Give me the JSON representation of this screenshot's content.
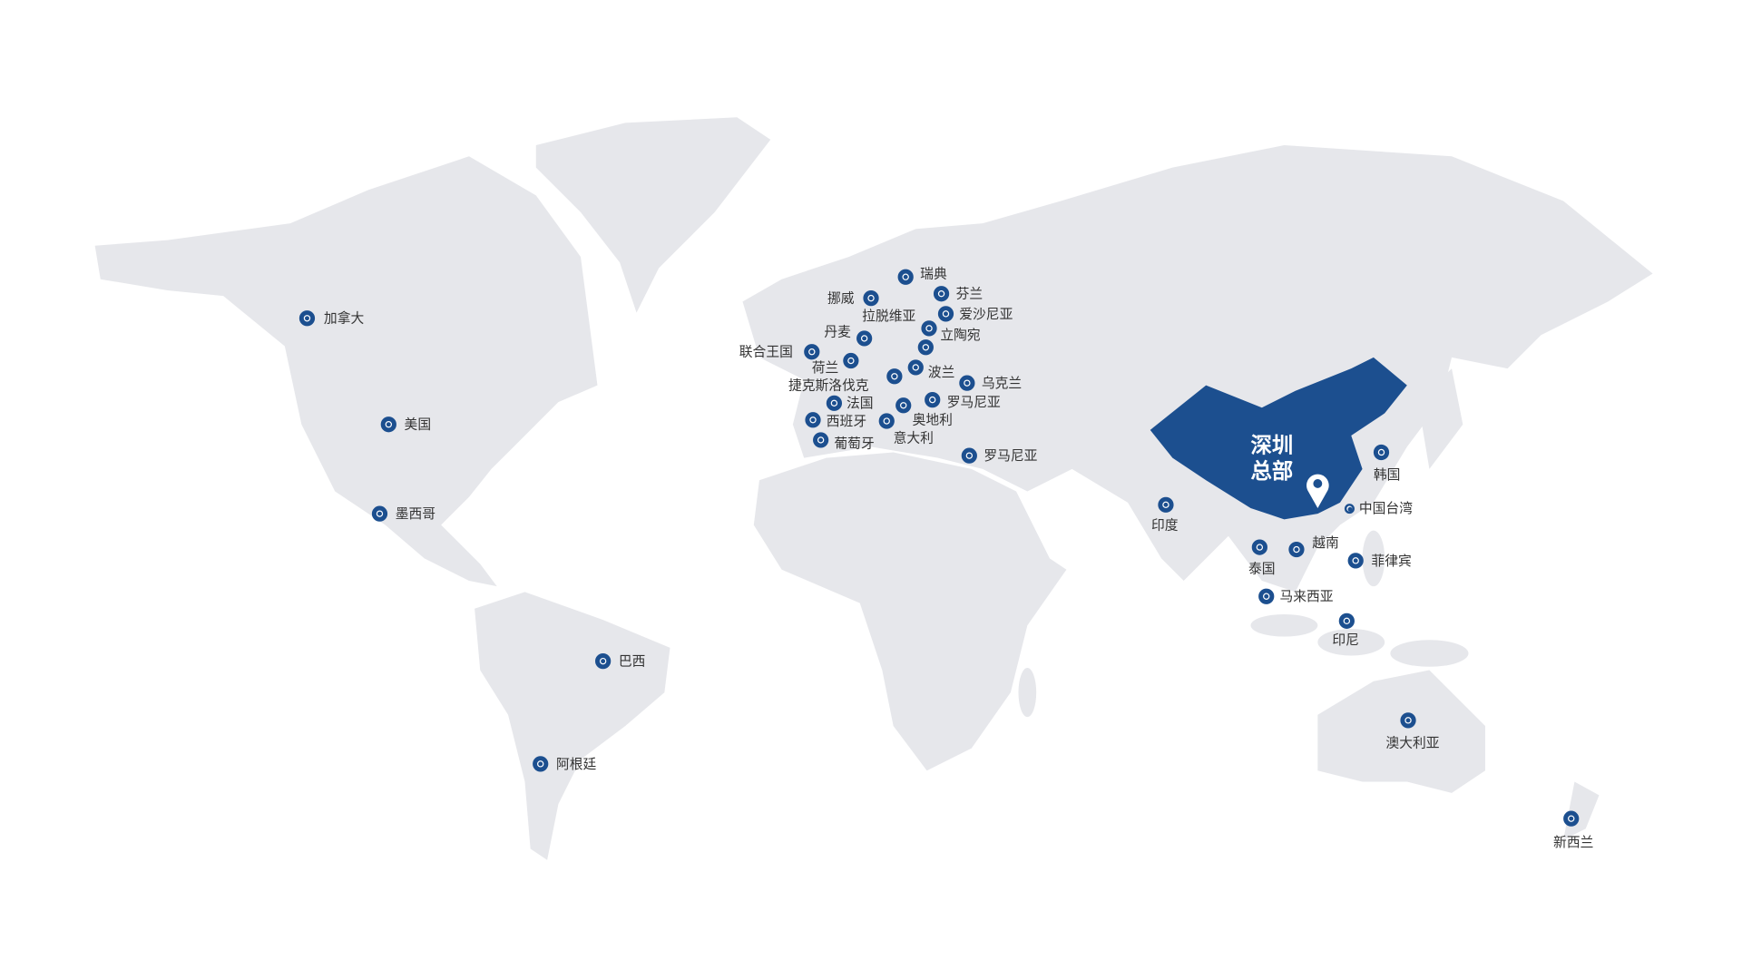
{
  "colors": {
    "land": "#e6e7eb",
    "china": "#1c4f8f",
    "marker": "#1c4f8f"
  },
  "headquarters": {
    "line1": "深圳",
    "line2": "总部",
    "icon": "map-pin-icon"
  },
  "locations": [
    {
      "name": "加拿大"
    },
    {
      "name": "美国"
    },
    {
      "name": "墨西哥"
    },
    {
      "name": "巴西"
    },
    {
      "name": "阿根廷"
    },
    {
      "name": "瑞典"
    },
    {
      "name": "挪威"
    },
    {
      "name": "芬兰"
    },
    {
      "name": "爱沙尼亚"
    },
    {
      "name": "拉脱维亚"
    },
    {
      "name": "立陶宛"
    },
    {
      "name": "丹麦"
    },
    {
      "name": "联合王国"
    },
    {
      "name": "荷兰"
    },
    {
      "name": "波兰"
    },
    {
      "name": "捷克斯洛伐克"
    },
    {
      "name": "乌克兰"
    },
    {
      "name": "法国"
    },
    {
      "name": "罗马尼亚"
    },
    {
      "name": "奥地利"
    },
    {
      "name": "西班牙"
    },
    {
      "name": "意大利"
    },
    {
      "name": "葡萄牙"
    },
    {
      "name": "罗马尼亚"
    },
    {
      "name": "印度"
    },
    {
      "name": "韩国"
    },
    {
      "name": "中国台湾"
    },
    {
      "name": "泰国"
    },
    {
      "name": "越南"
    },
    {
      "name": "菲律宾"
    },
    {
      "name": "马来西亚"
    },
    {
      "name": "印尼"
    },
    {
      "name": "澳大利亚"
    },
    {
      "name": "新西兰"
    }
  ]
}
